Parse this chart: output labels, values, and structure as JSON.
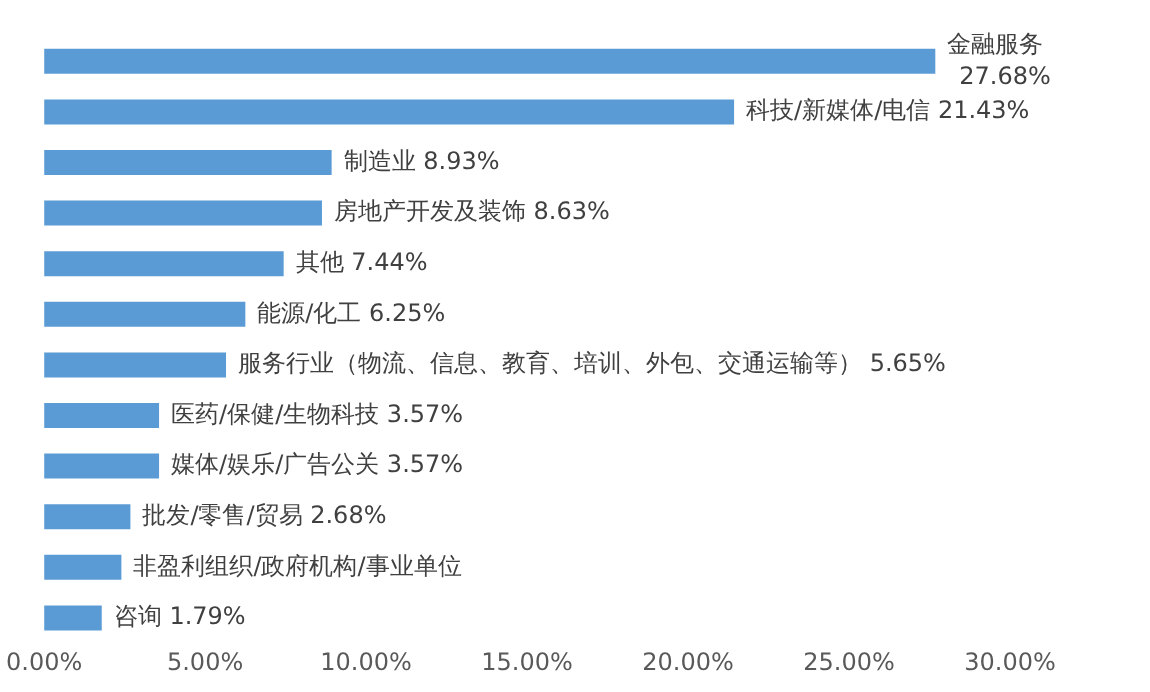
{
  "chart_data": {
    "type": "bar",
    "orientation": "horizontal",
    "categories": [
      "金融服务",
      "科技/新媒体/电信",
      "制造业",
      "房地产开发及装饰",
      "其他",
      "能源/化工",
      "服务行业（物流、信息、教育、培训、外包、交通运输等）",
      "医药/保健/生物科技",
      "媒体/娱乐/广告公关",
      "批发/零售/贸易",
      "非盈利组织/政府机构/事业单位",
      "咨询"
    ],
    "values": [
      27.68,
      21.43,
      8.93,
      8.63,
      7.44,
      6.25,
      5.65,
      3.57,
      3.57,
      2.68,
      2.4,
      1.79
    ],
    "value_labels": [
      "27.68%",
      "21.43%",
      "8.93%",
      "8.63%",
      "7.44%",
      "6.25%",
      "5.65%",
      "3.57%",
      "3.57%",
      "2.68%",
      null,
      "1.79%"
    ],
    "color": "#5b9bd5",
    "xlim": [
      0,
      30
    ],
    "xticks": [
      {
        "value": 0,
        "label": "0.00%"
      },
      {
        "value": 5,
        "label": "5.00%"
      },
      {
        "value": 10,
        "label": "10.00%"
      },
      {
        "value": 15,
        "label": "15.00%"
      },
      {
        "value": 20,
        "label": "20.00%"
      },
      {
        "value": 25,
        "label": "25.00%"
      },
      {
        "value": 30,
        "label": "30.00%"
      }
    ],
    "tick_labels": "x",
    "grid": false,
    "legend": false
  }
}
